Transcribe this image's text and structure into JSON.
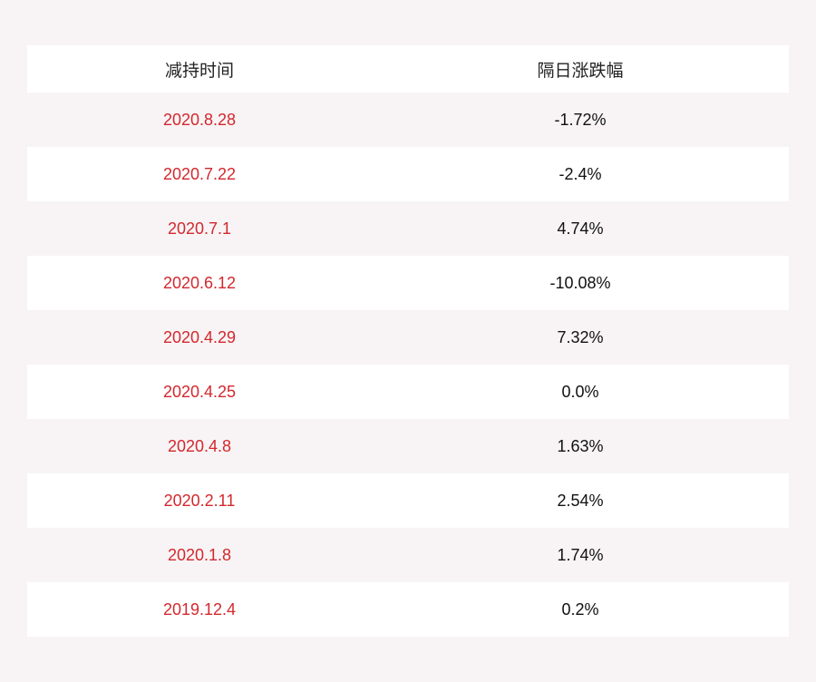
{
  "table": {
    "header": [
      "减持时间",
      "隔日涨跌幅"
    ],
    "rows": [
      [
        "2020.8.28",
        "-1.72%"
      ],
      [
        "2020.7.22",
        "-2.4%"
      ],
      [
        "2020.7.1",
        "4.74%"
      ],
      [
        "2020.6.12",
        "-10.08%"
      ],
      [
        "2020.4.29",
        "7.32%"
      ],
      [
        "2020.4.25",
        "0.0%"
      ],
      [
        "2020.4.8",
        "1.63%"
      ],
      [
        "2020.2.11",
        "2.54%"
      ],
      [
        "2020.1.8",
        "1.74%"
      ],
      [
        "2019.12.4",
        "0.2%"
      ]
    ]
  }
}
